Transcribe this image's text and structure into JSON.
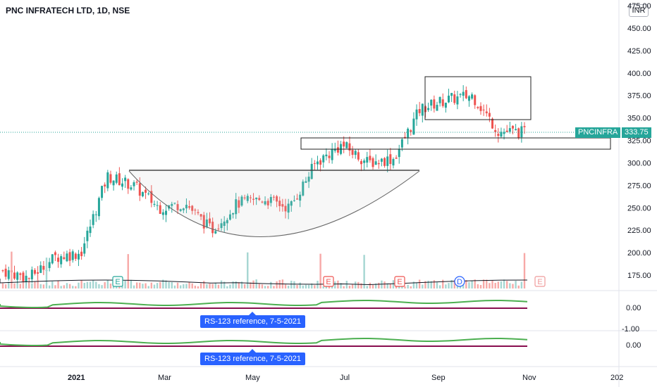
{
  "header": {
    "title": "PNC INFRATECH LTD, 1D, NSE",
    "currency": "INR"
  },
  "price_label": {
    "symbol": "PNCINFRA",
    "value": "333.75"
  },
  "indicator_notes": [
    {
      "text": "RS-123 reference, 7-5-2021"
    },
    {
      "text": "RS-123 reference, 7-5-2021"
    }
  ],
  "earnings_markers": [
    "E",
    "E",
    "E",
    "D",
    "E"
  ],
  "colors": {
    "up": "#26a69a",
    "down": "#ef5350",
    "rs_line": "#4caf50",
    "baseline": "#880e4f",
    "note_bg": "#2962ff"
  },
  "chart_data": {
    "type": "candlestick",
    "title": "PNC INFRATECH LTD, 1D, NSE",
    "y_ticks": [
      "475.00",
      "450.00",
      "425.00",
      "400.00",
      "375.00",
      "350.00",
      "325.00",
      "300.00",
      "275.00",
      "250.00",
      "225.00",
      "200.00",
      "175.00"
    ],
    "x_ticks": [
      "2021",
      "Mar",
      "May",
      "Jul",
      "Sep",
      "Nov",
      "202"
    ],
    "ylim": [
      150,
      480
    ],
    "last_price": 333.75,
    "series": [
      {
        "name": "price",
        "x": [
          "2020-12",
          "2021-01",
          "2021-01-25",
          "2021-02-05",
          "2021-02-15",
          "2021-03-05",
          "2021-03-25",
          "2021-04-15",
          "2021-05-05",
          "2021-05-25",
          "2021-06-15",
          "2021-06-30",
          "2021-07-10",
          "2021-07-25",
          "2021-08-10",
          "2021-08-25",
          "2021-09-05",
          "2021-09-25",
          "2021-10-10",
          "2021-10-20",
          "2021-11-01"
        ],
        "values": [
          180,
          172,
          195,
          200,
          285,
          275,
          250,
          255,
          225,
          255,
          260,
          250,
          300,
          320,
          300,
          305,
          360,
          370,
          375,
          335,
          333.75
        ]
      }
    ],
    "indicator_panes": [
      {
        "y_ticks": [
          "0.00",
          "-1.00"
        ]
      },
      {
        "y_ticks": [
          "0.00"
        ]
      }
    ]
  }
}
